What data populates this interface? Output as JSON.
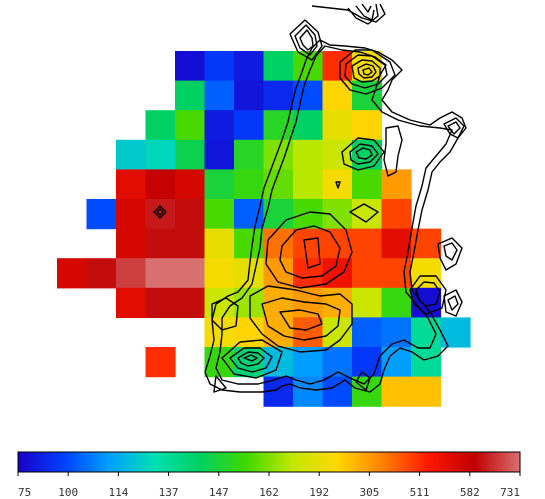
{
  "chart_data": {
    "type": "heatmap",
    "title": "",
    "xlabel": "",
    "ylabel": "",
    "colorbar": {
      "orientation": "horizontal",
      "placement": "bottom",
      "tick_labels": [
        "75",
        "100",
        "114",
        "137",
        "147",
        "162",
        "192",
        "305",
        "511",
        "582",
        "731"
      ]
    },
    "color_scale": [
      "#1a00c8",
      "#0040ff",
      "#00a0ff",
      "#00e0b0",
      "#00d060",
      "#40d800",
      "#c0e800",
      "#ffd800",
      "#ff8000",
      "#ff1800",
      "#c00000",
      "#d87070"
    ],
    "grid": {
      "columns": 14,
      "rows": 12,
      "cells": [
        {
          "r": 0,
          "c": 4,
          "v": 0.02
        },
        {
          "r": 0,
          "c": 5,
          "v": 0.08
        },
        {
          "r": 0,
          "c": 6,
          "v": 0.04
        },
        {
          "r": 0,
          "c": 7,
          "v": 0.36
        },
        {
          "r": 0,
          "c": 8,
          "v": 0.46
        },
        {
          "r": 0,
          "c": 9,
          "v": 0.8
        },
        {
          "r": 0,
          "c": 10,
          "v": 0.62
        },
        {
          "r": 1,
          "c": 4,
          "v": 0.36
        },
        {
          "r": 1,
          "c": 5,
          "v": 0.12
        },
        {
          "r": 1,
          "c": 6,
          "v": 0.03
        },
        {
          "r": 1,
          "c": 7,
          "v": 0.06
        },
        {
          "r": 1,
          "c": 8,
          "v": 0.1
        },
        {
          "r": 1,
          "c": 9,
          "v": 0.64
        },
        {
          "r": 1,
          "c": 10,
          "v": 0.4
        },
        {
          "r": 2,
          "c": 3,
          "v": 0.36
        },
        {
          "r": 2,
          "c": 4,
          "v": 0.46
        },
        {
          "r": 2,
          "c": 5,
          "v": 0.04
        },
        {
          "r": 2,
          "c": 6,
          "v": 0.08
        },
        {
          "r": 2,
          "c": 7,
          "v": 0.42
        },
        {
          "r": 2,
          "c": 8,
          "v": 0.36
        },
        {
          "r": 2,
          "c": 9,
          "v": 0.6
        },
        {
          "r": 2,
          "c": 10,
          "v": 0.64
        },
        {
          "r": 3,
          "c": 2,
          "v": 0.24
        },
        {
          "r": 3,
          "c": 3,
          "v": 0.26
        },
        {
          "r": 3,
          "c": 4,
          "v": 0.38
        },
        {
          "r": 3,
          "c": 5,
          "v": 0.03
        },
        {
          "r": 3,
          "c": 6,
          "v": 0.42
        },
        {
          "r": 3,
          "c": 7,
          "v": 0.5
        },
        {
          "r": 3,
          "c": 8,
          "v": 0.54
        },
        {
          "r": 3,
          "c": 9,
          "v": 0.56
        },
        {
          "r": 3,
          "c": 10,
          "v": 0.36
        },
        {
          "r": 4,
          "c": 2,
          "v": 0.86
        },
        {
          "r": 4,
          "c": 3,
          "v": 0.9
        },
        {
          "r": 4,
          "c": 4,
          "v": 0.88
        },
        {
          "r": 4,
          "c": 5,
          "v": 0.4
        },
        {
          "r": 4,
          "c": 6,
          "v": 0.44
        },
        {
          "r": 4,
          "c": 7,
          "v": 0.48
        },
        {
          "r": 4,
          "c": 8,
          "v": 0.54
        },
        {
          "r": 4,
          "c": 9,
          "v": 0.62
        },
        {
          "r": 4,
          "c": 10,
          "v": 0.46
        },
        {
          "r": 4,
          "c": 11,
          "v": 0.7
        },
        {
          "r": 5,
          "c": 1,
          "v": 0.1
        },
        {
          "r": 5,
          "c": 2,
          "v": 0.88
        },
        {
          "r": 5,
          "c": 3,
          "v": 0.93
        },
        {
          "r": 5,
          "c": 4,
          "v": 0.92
        },
        {
          "r": 5,
          "c": 5,
          "v": 0.46
        },
        {
          "r": 5,
          "c": 6,
          "v": 0.12
        },
        {
          "r": 5,
          "c": 7,
          "v": 0.4
        },
        {
          "r": 5,
          "c": 8,
          "v": 0.46
        },
        {
          "r": 5,
          "c": 9,
          "v": 0.5
        },
        {
          "r": 5,
          "c": 10,
          "v": 0.56
        },
        {
          "r": 5,
          "c": 11,
          "v": 0.78
        },
        {
          "r": 6,
          "c": 2,
          "v": 0.88
        },
        {
          "r": 6,
          "c": 3,
          "v": 0.92
        },
        {
          "r": 6,
          "c": 4,
          "v": 0.92
        },
        {
          "r": 6,
          "c": 5,
          "v": 0.6
        },
        {
          "r": 6,
          "c": 6,
          "v": 0.46
        },
        {
          "r": 6,
          "c": 7,
          "v": 0.74
        },
        {
          "r": 6,
          "c": 8,
          "v": 0.78
        },
        {
          "r": 6,
          "c": 9,
          "v": 0.78
        },
        {
          "r": 6,
          "c": 10,
          "v": 0.78
        },
        {
          "r": 6,
          "c": 11,
          "v": 0.86
        },
        {
          "r": 6,
          "c": 12,
          "v": 0.78
        },
        {
          "r": 7,
          "c": 0,
          "v": 0.88
        },
        {
          "r": 7,
          "c": 1,
          "v": 0.92
        },
        {
          "r": 7,
          "c": 2,
          "v": 0.96
        },
        {
          "r": 7,
          "c": 3,
          "v": 1.0
        },
        {
          "r": 7,
          "c": 4,
          "v": 1.0
        },
        {
          "r": 7,
          "c": 5,
          "v": 0.62
        },
        {
          "r": 7,
          "c": 6,
          "v": 0.6
        },
        {
          "r": 7,
          "c": 7,
          "v": 0.7
        },
        {
          "r": 7,
          "c": 8,
          "v": 0.8
        },
        {
          "r": 7,
          "c": 9,
          "v": 0.84
        },
        {
          "r": 7,
          "c": 10,
          "v": 0.78
        },
        {
          "r": 7,
          "c": 11,
          "v": 0.78
        },
        {
          "r": 7,
          "c": 12,
          "v": 0.62
        },
        {
          "r": 8,
          "c": 2,
          "v": 0.86
        },
        {
          "r": 8,
          "c": 3,
          "v": 0.92
        },
        {
          "r": 8,
          "c": 4,
          "v": 0.92
        },
        {
          "r": 8,
          "c": 5,
          "v": 0.56
        },
        {
          "r": 8,
          "c": 6,
          "v": 0.52
        },
        {
          "r": 8,
          "c": 7,
          "v": 0.68
        },
        {
          "r": 8,
          "c": 8,
          "v": 0.7
        },
        {
          "r": 8,
          "c": 9,
          "v": 0.68
        },
        {
          "r": 8,
          "c": 10,
          "v": 0.56
        },
        {
          "r": 8,
          "c": 11,
          "v": 0.44
        },
        {
          "r": 8,
          "c": 12,
          "v": 0.02
        },
        {
          "r": 9,
          "c": 5,
          "v": 0.62
        },
        {
          "r": 9,
          "c": 6,
          "v": 0.64
        },
        {
          "r": 9,
          "c": 7,
          "v": 0.68
        },
        {
          "r": 9,
          "c": 8,
          "v": 0.76
        },
        {
          "r": 9,
          "c": 9,
          "v": 0.56
        },
        {
          "r": 9,
          "c": 10,
          "v": 0.12
        },
        {
          "r": 9,
          "c": 11,
          "v": 0.14
        },
        {
          "r": 9,
          "c": 12,
          "v": 0.3
        },
        {
          "r": 9,
          "c": 13,
          "v": 0.22
        },
        {
          "r": 10,
          "c": 3,
          "v": 0.8
        },
        {
          "r": 10,
          "c": 5,
          "v": 0.44
        },
        {
          "r": 10,
          "c": 6,
          "v": 0.34
        },
        {
          "r": 10,
          "c": 7,
          "v": 0.22
        },
        {
          "r": 10,
          "c": 8,
          "v": 0.18
        },
        {
          "r": 10,
          "c": 9,
          "v": 0.14
        },
        {
          "r": 10,
          "c": 10,
          "v": 0.08
        },
        {
          "r": 10,
          "c": 11,
          "v": 0.18
        },
        {
          "r": 10,
          "c": 12,
          "v": 0.3
        },
        {
          "r": 11,
          "c": 7,
          "v": 0.06
        },
        {
          "r": 11,
          "c": 8,
          "v": 0.16
        },
        {
          "r": 11,
          "c": 9,
          "v": 0.1
        },
        {
          "r": 11,
          "c": 10,
          "v": 0.44
        },
        {
          "r": 11,
          "c": 11,
          "v": 0.66
        },
        {
          "r": 11,
          "c": 12,
          "v": 0.66
        }
      ]
    }
  }
}
